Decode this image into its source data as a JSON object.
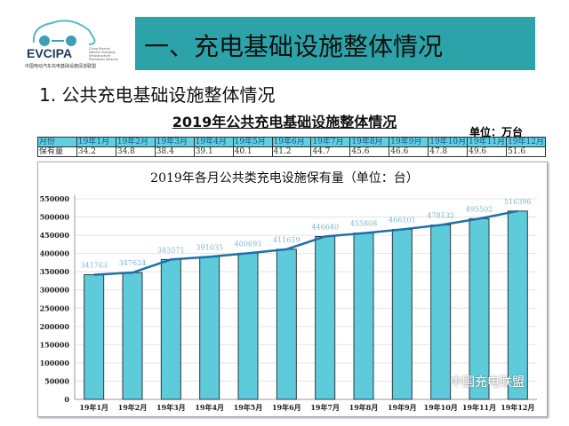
{
  "logo": {
    "brand": "EVCIPA",
    "subtitle": "中国电动汽车充电基础设施促进联盟",
    "english": "China Electric Vehicle Charging Infrastructure Promotion Alliance"
  },
  "banner": {
    "title": "一、充电基础设施整体情况"
  },
  "section": {
    "heading": "1. 公共充电基础设施整体情况"
  },
  "table": {
    "title": "2019年公共充电基础设施整体情况",
    "unit": "单位：万台",
    "header": [
      "月份",
      "19年1月",
      "19年2月",
      "19年3月",
      "19年4月",
      "19年5月",
      "19年6月",
      "19年7月",
      "19年8月",
      "19年9月",
      "19年10月",
      "19年11月",
      "19年12月"
    ],
    "row": [
      "保有量",
      "34.2",
      "34.8",
      "38.4",
      "39.1",
      "40.1",
      "41.2",
      "44.7",
      "45.6",
      "46.6",
      "47.8",
      "49.6",
      "51.6"
    ]
  },
  "chart_data": {
    "type": "bar",
    "title": "2019年各月公共类充电设施保有量（单位：台）",
    "categories": [
      "19年1月",
      "19年2月",
      "19年3月",
      "19年4月",
      "19年5月",
      "19年6月",
      "19年7月",
      "19年8月",
      "19年9月",
      "19年10月",
      "19年11月",
      "19年12月"
    ],
    "values": [
      341763,
      347624,
      383571,
      391035,
      400693,
      411619,
      446640,
      455808,
      466101,
      478132,
      495502,
      516396
    ],
    "data_labels": [
      "341763",
      "347624",
      "383571",
      "391035",
      "400693",
      "411619",
      "446640",
      "455808",
      "466101",
      "478132",
      "495502",
      "516396"
    ],
    "trend_line": true,
    "ylim": [
      0,
      550000
    ],
    "yticks": [
      "0",
      "50000",
      "100000",
      "150000",
      "200000",
      "250000",
      "300000",
      "350000",
      "400000",
      "450000",
      "500000",
      "550000"
    ],
    "grid": true,
    "colors": {
      "bar": "#5ecbdb",
      "line": "#1f6fa8",
      "label": "#7ab8d0"
    }
  },
  "watermark": "中国充电联盟"
}
